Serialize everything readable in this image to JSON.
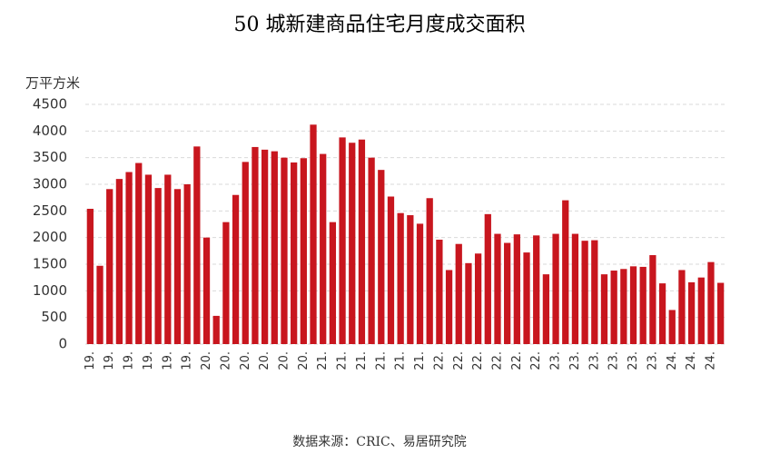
{
  "chart_data": {
    "type": "bar",
    "title": "50 城新建商品住宅月度成交面积",
    "y_label": "万平方米",
    "source": "数据来源：CRIC、易居研究院",
    "color": "#c8161e",
    "categories": [
      "19.",
      null,
      "19.",
      null,
      "19.",
      null,
      "19.",
      null,
      "19.",
      null,
      "19.",
      null,
      "20.",
      null,
      "20.",
      null,
      "20.",
      null,
      "20.",
      null,
      "20.",
      null,
      "20.",
      null,
      "21.",
      null,
      "21.",
      null,
      "21.",
      null,
      "21.",
      null,
      "21.",
      null,
      "21.",
      null,
      "22.",
      null,
      "22.",
      null,
      "22.",
      null,
      "22.",
      null,
      "22.",
      null,
      "22.",
      null,
      "23.",
      null,
      "23.",
      null,
      "23.",
      null,
      "23.",
      null,
      "23.",
      null,
      "23.",
      null,
      "24.",
      null,
      "24.",
      null,
      "24.",
      null
    ],
    "values": [
      2540,
      1470,
      2910,
      3100,
      3230,
      3400,
      3180,
      2930,
      3180,
      2910,
      3000,
      3710,
      2000,
      530,
      2290,
      2800,
      3420,
      3700,
      3650,
      3620,
      3500,
      3410,
      3490,
      4120,
      3570,
      2290,
      3880,
      3780,
      3840,
      3500,
      3270,
      2770,
      2460,
      2420,
      2260,
      2740,
      1960,
      1390,
      1880,
      1520,
      1700,
      2440,
      2070,
      1900,
      2060,
      1720,
      2040,
      1310,
      2070,
      2700,
      2070,
      1940,
      1950,
      1310,
      1380,
      1410,
      1460,
      1450,
      1670,
      1140,
      640,
      1390,
      1160,
      1250,
      1540,
      1150
    ],
    "ylim": [
      0,
      4500
    ],
    "yticks": [
      0,
      500,
      1000,
      1500,
      2000,
      2500,
      3000,
      3500,
      4000,
      4500
    ],
    "grid": true
  }
}
